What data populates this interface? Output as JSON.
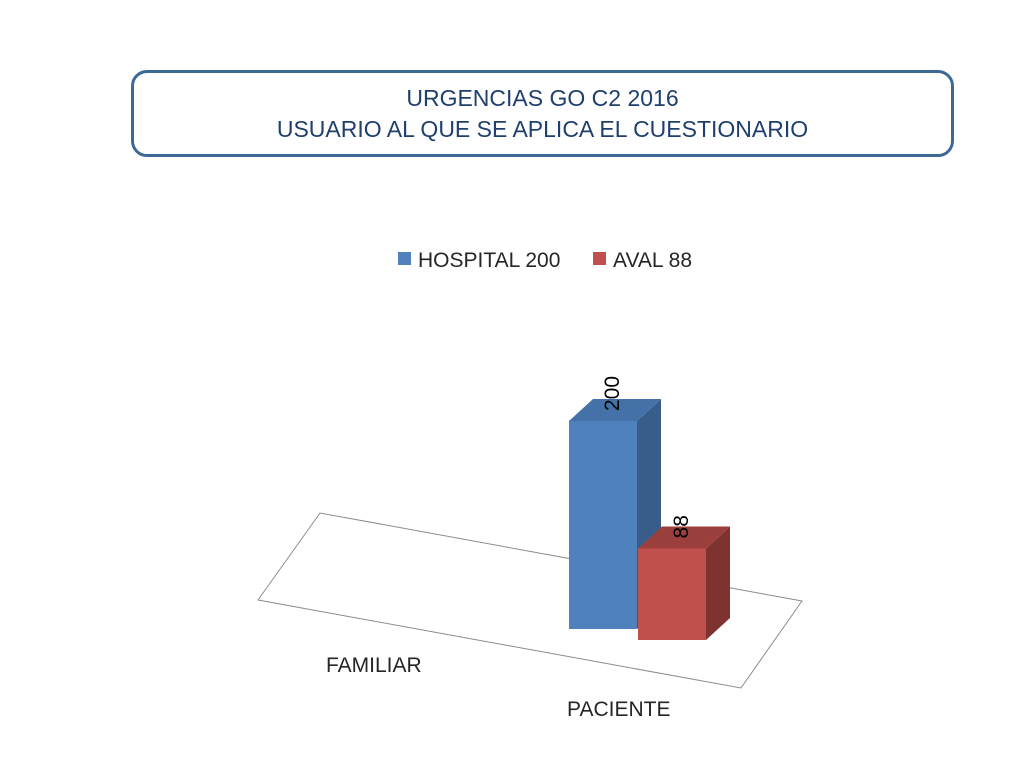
{
  "header": {
    "title_line1": "URGENCIAS GO C2 2016",
    "title_line2": "USUARIO AL QUE SE APLICA EL CUESTIONARIO"
  },
  "colors": {
    "title_border": "#3c6a96",
    "title_text": "#1f3f6e",
    "hospital_front": "#4f81bd",
    "hospital_side": "#385d8a",
    "hospital_top": "#4472a8",
    "aval_front": "#c0504d",
    "aval_side": "#7f3331",
    "aval_top": "#9b3f3c",
    "floor": "#ffffff",
    "floor_edge": "#8c8c8c"
  },
  "chart_data": {
    "type": "bar",
    "title": "URGENCIAS GO C2 2016 USUARIO AL QUE SE APLICA EL CUESTIONARIO",
    "categories": [
      "FAMILIAR",
      "PACIENTE"
    ],
    "series": [
      {
        "name": "HOSPITAL 200",
        "values": [
          null,
          200
        ],
        "labels": [
          "",
          "200"
        ]
      },
      {
        "name": "AVAL 88",
        "values": [
          null,
          88
        ],
        "labels": [
          "",
          "88"
        ]
      }
    ],
    "legend": "top-center",
    "grid": false,
    "ylim": [
      0,
      220
    ],
    "style": "3d-clustered-column"
  }
}
